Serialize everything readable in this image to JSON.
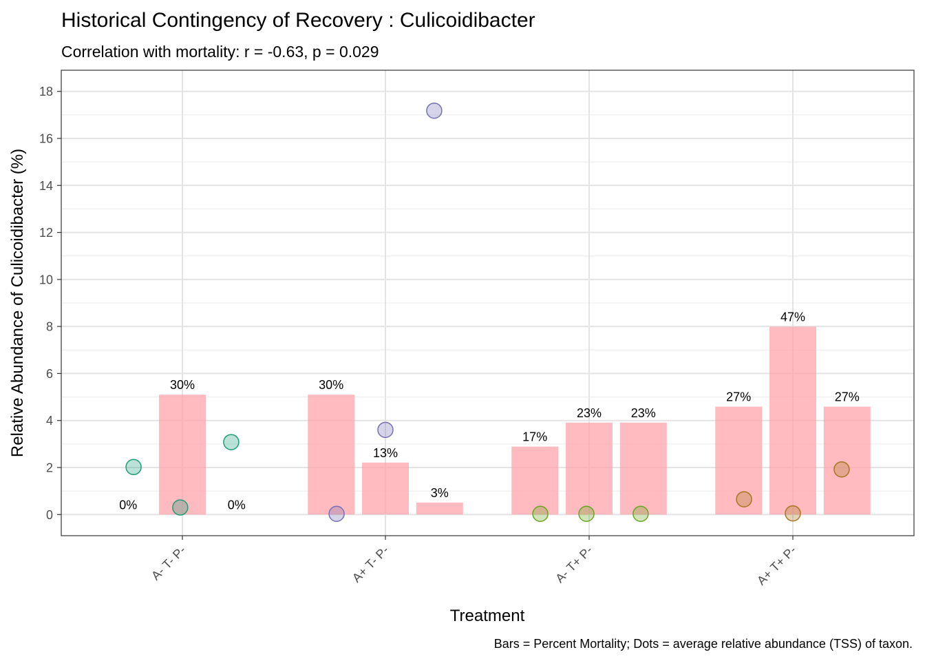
{
  "chart_data": {
    "type": "bar",
    "title": "Historical Contingency of Recovery : Culicoidibacter",
    "subtitle": "Correlation with mortality: r = -0.63, p = 0.029",
    "xlabel": "Treatment",
    "ylabel": "Relative Abundance of Culicoidibacter (%)",
    "caption": "Bars = Percent Mortality; Dots = average relative abundance (TSS) of taxon.",
    "ylim": [
      -0.9,
      18.9
    ],
    "yticks": [
      0,
      2,
      4,
      6,
      8,
      10,
      12,
      14,
      16,
      18
    ],
    "grid": true,
    "categories": [
      "A- T- P-",
      "A+ T- P-",
      "A- T+ P-",
      "A+ T+ P-"
    ],
    "bar_color": "#FF9EA5",
    "bar_scale_note": "bar height = percent mortality × 0.17 on the abundance axis",
    "bars": [
      {
        "category": "A- T- P-",
        "offset": -1,
        "mortality_pct": 0,
        "label": "0%"
      },
      {
        "category": "A- T- P-",
        "offset": 0,
        "mortality_pct": 30,
        "label": "30%"
      },
      {
        "category": "A- T- P-",
        "offset": 1,
        "mortality_pct": 0,
        "label": "0%"
      },
      {
        "category": "A+ T- P-",
        "offset": -1,
        "mortality_pct": 30,
        "label": "30%"
      },
      {
        "category": "A+ T- P-",
        "offset": 0,
        "mortality_pct": 13,
        "label": "13%"
      },
      {
        "category": "A+ T- P-",
        "offset": 1,
        "mortality_pct": 3,
        "label": "3%"
      },
      {
        "category": "A- T+ P-",
        "offset": -1,
        "mortality_pct": 17,
        "label": "17%"
      },
      {
        "category": "A- T+ P-",
        "offset": 0,
        "mortality_pct": 23,
        "label": "23%"
      },
      {
        "category": "A- T+ P-",
        "offset": 1,
        "mortality_pct": 23,
        "label": "23%"
      },
      {
        "category": "A+ T+ P-",
        "offset": -1,
        "mortality_pct": 27,
        "label": "27%"
      },
      {
        "category": "A+ T+ P-",
        "offset": 0,
        "mortality_pct": 47,
        "label": "47%"
      },
      {
        "category": "A+ T+ P-",
        "offset": 1,
        "mortality_pct": 27,
        "label": "27%"
      }
    ],
    "series": [
      {
        "category": "A- T- P-",
        "color": "#1B9E77",
        "points": [
          {
            "x_offset": -0.9,
            "y": 2.02
          },
          {
            "x_offset": -0.04,
            "y": 0.3
          },
          {
            "x_offset": 0.9,
            "y": 3.08
          }
        ]
      },
      {
        "category": "A+ T- P-",
        "color": "#7570B3",
        "points": [
          {
            "x_offset": -0.9,
            "y": 0.03
          },
          {
            "x_offset": 0.0,
            "y": 3.6
          },
          {
            "x_offset": 0.9,
            "y": 17.18
          }
        ]
      },
      {
        "category": "A- T+ P-",
        "color": "#66A61E",
        "points": [
          {
            "x_offset": -0.9,
            "y": 0.03
          },
          {
            "x_offset": -0.05,
            "y": 0.03
          },
          {
            "x_offset": 0.95,
            "y": 0.03
          }
        ]
      },
      {
        "category": "A+ T+ P-",
        "color": "#A6761D",
        "points": [
          {
            "x_offset": -0.9,
            "y": 0.65
          },
          {
            "x_offset": 0.0,
            "y": 0.05
          },
          {
            "x_offset": 0.9,
            "y": 1.92
          }
        ]
      }
    ]
  }
}
